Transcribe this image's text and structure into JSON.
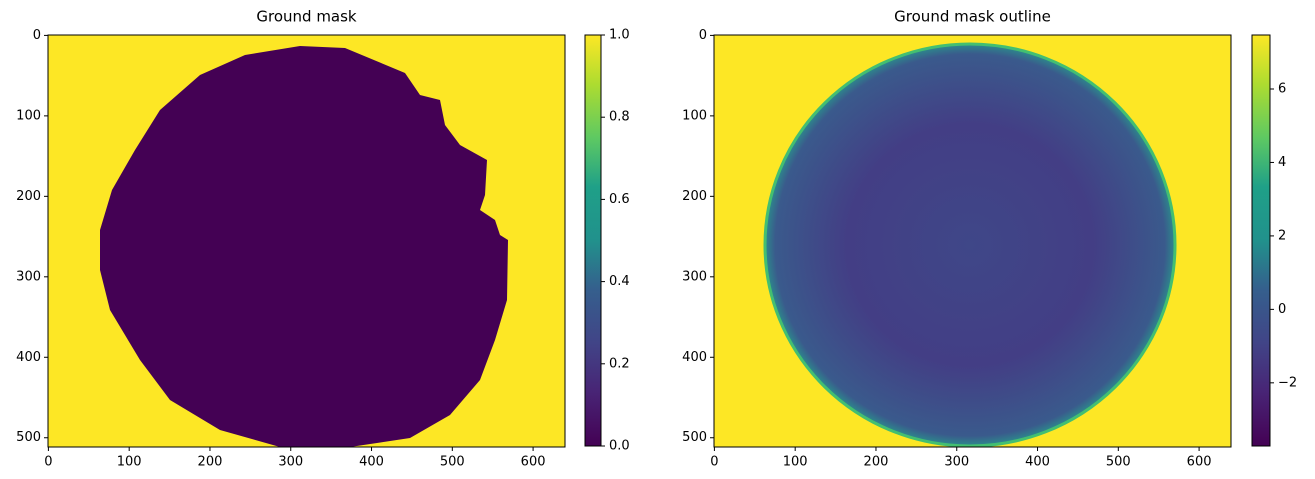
{
  "chart_data": [
    {
      "type": "image",
      "title": "Ground mask",
      "colormap": "viridis",
      "xlim": [
        -0.5,
        639.5
      ],
      "ylim": [
        511.5,
        -0.5
      ],
      "xticks": [
        0,
        100,
        200,
        300,
        400,
        500,
        600
      ],
      "yticks": [
        0,
        100,
        200,
        300,
        400,
        500
      ],
      "clim": [
        0,
        1
      ],
      "cticks": [
        {
          "value": 0,
          "label": "0.0"
        },
        {
          "value": 0.2,
          "label": "0.2"
        },
        {
          "value": 0.4,
          "label": "0.4"
        },
        {
          "value": 0.6,
          "label": "0.6"
        },
        {
          "value": 0.8,
          "label": "0.8"
        },
        {
          "value": 1,
          "label": "1.0"
        }
      ]
    },
    {
      "type": "image",
      "title": "Ground mask outline",
      "colormap": "viridis",
      "xlim": [
        -0.5,
        639.5
      ],
      "ylim": [
        511.5,
        -0.5
      ],
      "xticks": [
        0,
        100,
        200,
        300,
        400,
        500,
        600
      ],
      "yticks": [
        0,
        100,
        200,
        300,
        400,
        500
      ],
      "clim": [
        -3.72,
        7.47
      ],
      "cticks": [
        {
          "value": -2,
          "label": "−2"
        },
        0,
        2,
        4,
        6
      ]
    }
  ]
}
